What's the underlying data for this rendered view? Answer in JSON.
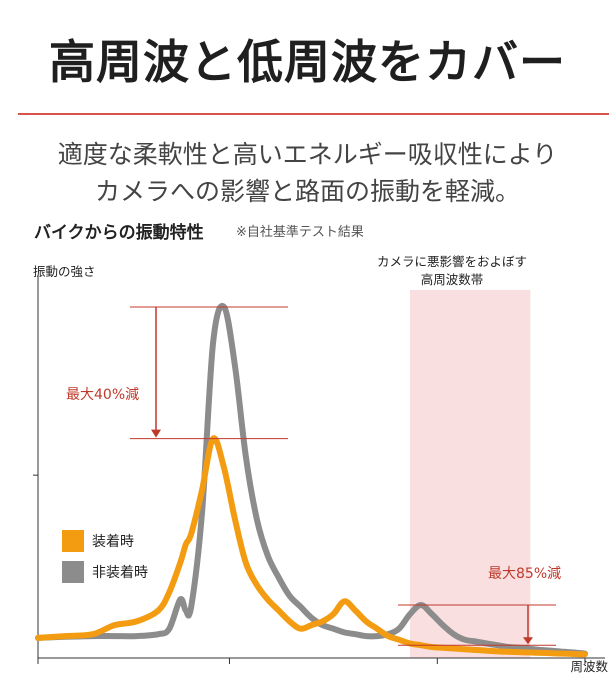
{
  "header": {
    "title": "高周波と低周波をカバー",
    "description_line1": "適度な柔軟性と高いエネルギー吸収性により",
    "description_line2": "カメラへの影響と路面の振動を軽減。",
    "accent_color": "#d9534a"
  },
  "chart_data": {
    "type": "line",
    "title": "バイクからの振動特性",
    "note": "※自社基準テスト結果",
    "xlabel": "周波数",
    "ylabel": "振動の強さ",
    "x": [
      0,
      5,
      10,
      14,
      18,
      22,
      24,
      26,
      27,
      28,
      30,
      32,
      34,
      36,
      38,
      40,
      42,
      44,
      46,
      48,
      50,
      52,
      54,
      56,
      58,
      60,
      62,
      64,
      66,
      68,
      70,
      72,
      74,
      76,
      78,
      80,
      82,
      84,
      86,
      88,
      90,
      92,
      94,
      96,
      98,
      100
    ],
    "series": [
      {
        "name": "装着時",
        "color": "#f39c12",
        "values": [
          0.055,
          0.06,
          0.065,
          0.09,
          0.1,
          0.13,
          0.18,
          0.26,
          0.31,
          0.34,
          0.46,
          0.6,
          0.52,
          0.38,
          0.26,
          0.2,
          0.16,
          0.13,
          0.1,
          0.08,
          0.09,
          0.1,
          0.12,
          0.155,
          0.13,
          0.1,
          0.08,
          0.06,
          0.05,
          0.04,
          0.035,
          0.03,
          0.028,
          0.026,
          0.024,
          0.022,
          0.02,
          0.018,
          0.017,
          0.016,
          0.015,
          0.014,
          0.013,
          0.012,
          0.011,
          0.01
        ]
      },
      {
        "name": "非装着時",
        "color": "#8c8c8c",
        "values": [
          0.055,
          0.058,
          0.06,
          0.06,
          0.06,
          0.065,
          0.08,
          0.16,
          0.13,
          0.14,
          0.4,
          0.86,
          0.96,
          0.8,
          0.55,
          0.38,
          0.28,
          0.22,
          0.17,
          0.14,
          0.11,
          0.09,
          0.08,
          0.07,
          0.065,
          0.06,
          0.06,
          0.065,
          0.08,
          0.12,
          0.145,
          0.12,
          0.09,
          0.065,
          0.05,
          0.045,
          0.04,
          0.035,
          0.03,
          0.028,
          0.025,
          0.022,
          0.02,
          0.017,
          0.015,
          0.012
        ]
      }
    ],
    "annotations": [
      {
        "text": "最大40%減",
        "color": "#c0392b"
      },
      {
        "text": "最大85%減",
        "color": "#c0392b"
      }
    ],
    "highlight_region": {
      "label_line1": "カメラに悪影響をおよぼす",
      "label_line2": "高周波数帯",
      "x_range": [
        68,
        90
      ],
      "color": "#f8dcdc"
    },
    "legend_position": "left-middle",
    "grid": false
  }
}
